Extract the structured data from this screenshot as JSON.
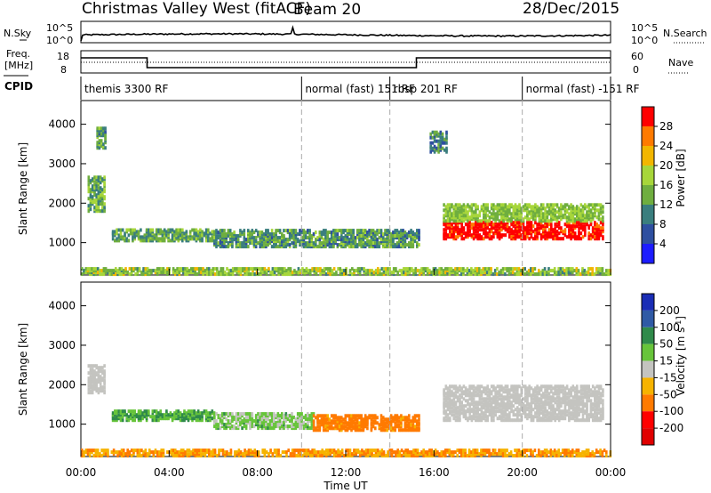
{
  "header": {
    "station": "Christmas Valley West (fitACF)",
    "beam": "Beam 20",
    "date": "28/Dec/2015"
  },
  "noise_panel": {
    "left_label": "N.Sky",
    "right_label": "N.Search",
    "ytick_top": "10^5",
    "ytick_bottom": "10^0"
  },
  "freq_panel": {
    "left_label_1": "Freq.",
    "left_label_2": "[MHz]",
    "right_label": "Nave",
    "left_ticks": [
      "18",
      "8"
    ],
    "right_ticks": [
      "60",
      "0"
    ],
    "freq_steps": [
      {
        "t0": 0,
        "t1": 3.0,
        "mhz": 16.5
      },
      {
        "t0": 3.0,
        "t1": 15.2,
        "mhz": 11.0
      },
      {
        "t0": 15.2,
        "t1": 24,
        "mhz": 16.5
      }
    ]
  },
  "cpid": {
    "label": "CPID",
    "segments": [
      {
        "start": 0,
        "text": "themis 3300 RF"
      },
      {
        "start": 10.0,
        "text": "normal (fast) 151 RF"
      },
      {
        "start": 14.0,
        "text": "rbsp 201 RF"
      },
      {
        "start": 20.0,
        "text": "normal (fast) -151 RF"
      }
    ],
    "divisions": [
      10.0,
      14.0,
      20.0
    ]
  },
  "xaxis": {
    "ticks": [
      "00:00",
      "04:00",
      "08:00",
      "12:00",
      "16:00",
      "20:00",
      "00:00"
    ],
    "label": "Time UT",
    "range_hours": [
      0,
      24
    ]
  },
  "power_panel": {
    "ylabel": "Slant Range [km]",
    "yticks": [
      "4000",
      "3000",
      "2000",
      "1000"
    ],
    "colorbar_label": "Power [dB]",
    "colorbar_ticks": [
      "28",
      "24",
      "20",
      "16",
      "12",
      "8",
      "4"
    ],
    "colors": [
      "#1c1cff",
      "#2e4fa0",
      "#3a7e7e",
      "#6fae3f",
      "#a7d63a",
      "#f2b600",
      "#ff7a00",
      "#ff0000"
    ]
  },
  "velocity_panel": {
    "ylabel": "Slant Range [km]",
    "yticks": [
      "4000",
      "3000",
      "2000",
      "1000"
    ],
    "colorbar_label_1": "Velocity [m s",
    "colorbar_label_sup": "-1",
    "colorbar_label_2": "]",
    "colorbar_ticks": [
      "200",
      "100",
      "50",
      "15",
      "-15",
      "-50",
      "-100",
      "-200"
    ],
    "colors": [
      "#1a2db5",
      "#2f5aa5",
      "#2f8a4a",
      "#67c43a",
      "#c4c4c0",
      "#f6b300",
      "#ff7a00",
      "#ff0000",
      "#e00000"
    ]
  },
  "chart_data": {
    "type": "heatmap",
    "x_unit": "hours UT",
    "y_unit": "km",
    "ylim": [
      180,
      4600
    ],
    "xlim": [
      0,
      24
    ],
    "power_features": [
      {
        "t0": 0.3,
        "t1": 1.1,
        "r0": 1800,
        "r1": 2700,
        "db": 14
      },
      {
        "t0": 0.7,
        "t1": 1.1,
        "r0": 3400,
        "r1": 3900,
        "db": 12
      },
      {
        "t0": 1.4,
        "t1": 6.0,
        "r0": 1050,
        "r1": 1350,
        "db": 13
      },
      {
        "t0": 6.0,
        "t1": 15.3,
        "r0": 900,
        "r1": 1350,
        "db": 12
      },
      {
        "t0": 15.8,
        "t1": 16.6,
        "r0": 3300,
        "r1": 3800,
        "db": 11
      },
      {
        "t0": 16.4,
        "t1": 23.6,
        "r0": 1100,
        "r1": 2000,
        "db": 24
      },
      {
        "t0": 0.0,
        "t1": 24.0,
        "r0": 200,
        "r1": 360,
        "db": 16
      }
    ],
    "velocity_features": [
      {
        "t0": 0.3,
        "t1": 1.1,
        "r0": 1800,
        "r1": 2500,
        "v": 0
      },
      {
        "t0": 1.4,
        "t1": 6.0,
        "r0": 1100,
        "r1": 1350,
        "v": 30
      },
      {
        "t0": 6.0,
        "t1": 10.5,
        "r0": 900,
        "r1": 1300,
        "v": 20
      },
      {
        "t0": 10.5,
        "t1": 15.3,
        "r0": 850,
        "r1": 1250,
        "v": -45
      },
      {
        "t0": 16.4,
        "t1": 23.6,
        "r0": 1100,
        "r1": 2000,
        "v": 0
      },
      {
        "t0": 0.0,
        "t1": 24.0,
        "r0": 200,
        "r1": 360,
        "v": -30
      }
    ]
  }
}
